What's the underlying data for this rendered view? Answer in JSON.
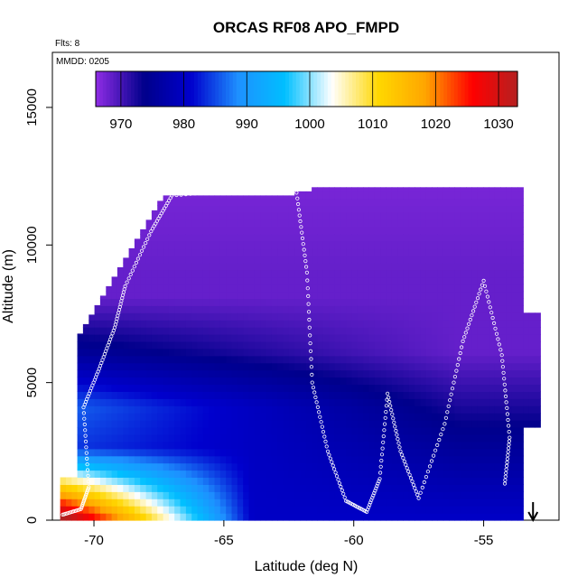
{
  "chart_data": {
    "type": "heatmap",
    "title": "ORCAS RF08 APO_FMPD",
    "flights_label": "Flts: 8",
    "date_label": "MMDD: 0205",
    "xlabel": "Latitude (deg N)",
    "ylabel": "Altitude (m)",
    "xlim": [
      -71.6,
      -52.1
    ],
    "ylim": [
      0,
      17000
    ],
    "x_ticks": [
      -70,
      -65,
      -60,
      -55
    ],
    "y_ticks": [
      0,
      5000,
      10000,
      15000
    ],
    "colorbar": {
      "min": 966,
      "max": 1033,
      "ticks": [
        970,
        980,
        990,
        1000,
        1010,
        1020,
        1030
      ],
      "colors": [
        "#8a2be2",
        "#00008b",
        "#0000cd",
        "#1e90ff",
        "#00bfff",
        "#ffffff",
        "#ffd700",
        "#ffa500",
        "#ff0000",
        "#b22222"
      ]
    },
    "field_description_points": [
      {
        "lat": -70.5,
        "alt": 300,
        "value": 1024
      },
      {
        "lat": -68,
        "alt": 800,
        "value": 1012
      },
      {
        "lat": -66,
        "alt": 1500,
        "value": 998
      },
      {
        "lat": -64,
        "alt": 3000,
        "value": 985
      },
      {
        "lat": -60,
        "alt": 5000,
        "value": 972
      },
      {
        "lat": -57,
        "alt": 8000,
        "value": 970
      },
      {
        "lat": -63,
        "alt": 11500,
        "value": 968
      }
    ],
    "flight_track": [
      {
        "lat": -71.2,
        "alt": 200
      },
      {
        "lat": -70.5,
        "alt": 400
      },
      {
        "lat": -70.2,
        "alt": 1200
      },
      {
        "lat": -70.4,
        "alt": 4100
      },
      {
        "lat": -69.8,
        "alt": 5500
      },
      {
        "lat": -69.2,
        "alt": 7000
      },
      {
        "lat": -68.8,
        "alt": 8500
      },
      {
        "lat": -67.8,
        "alt": 10500
      },
      {
        "lat": -67.0,
        "alt": 11800
      },
      {
        "lat": -64.5,
        "alt": 12000
      },
      {
        "lat": -62.2,
        "alt": 11900
      },
      {
        "lat": -61.8,
        "alt": 9000
      },
      {
        "lat": -61.6,
        "alt": 5000
      },
      {
        "lat": -61.0,
        "alt": 2500
      },
      {
        "lat": -60.3,
        "alt": 700
      },
      {
        "lat": -59.5,
        "alt": 300
      },
      {
        "lat": -59.0,
        "alt": 1500
      },
      {
        "lat": -58.7,
        "alt": 4600
      },
      {
        "lat": -58.2,
        "alt": 2500
      },
      {
        "lat": -57.5,
        "alt": 800
      },
      {
        "lat": -56.5,
        "alt": 3500
      },
      {
        "lat": -55.8,
        "alt": 6500
      },
      {
        "lat": -55.0,
        "alt": 8700
      },
      {
        "lat": -54.3,
        "alt": 6000
      },
      {
        "lat": -54.0,
        "alt": 3000
      },
      {
        "lat": -54.2,
        "alt": 1200
      }
    ],
    "arrow_lat": -53.1
  }
}
